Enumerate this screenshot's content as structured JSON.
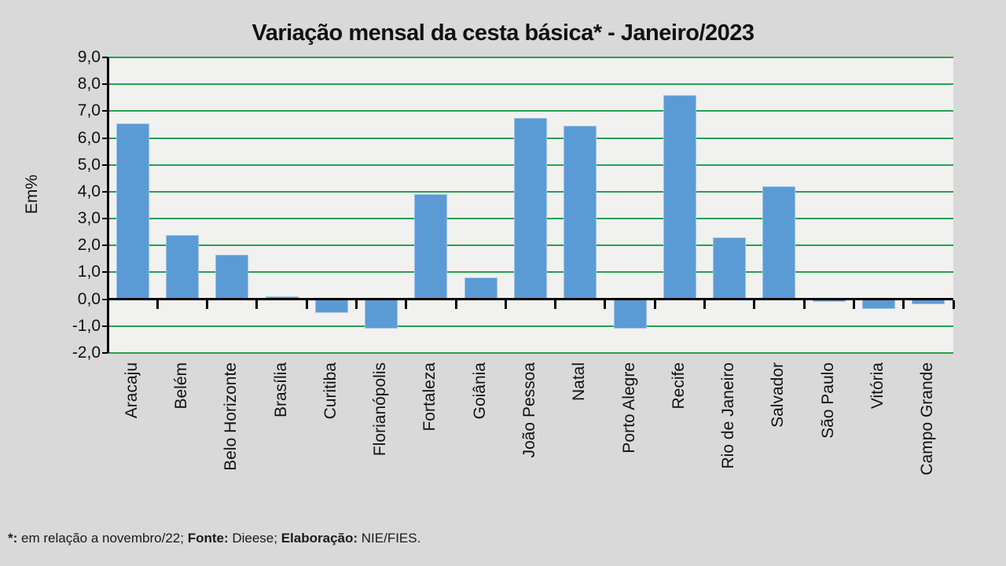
{
  "title": "Variação mensal da cesta básica* - Janeiro/2023",
  "footer": {
    "asterisk_label": "*:",
    "note": " em relação a novembro/22; ",
    "fonte_label": "Fonte:",
    "fonte_value": " Dieese; ",
    "elaboracao_label": "Elaboração:",
    "elaboracao_value": " NIE/FIES."
  },
  "colors": {
    "page_background": "#d9d9d9",
    "plot_background": "#f1f1ef",
    "gridline": "#28a050",
    "bar": "#5b9bd5",
    "axis": "#000000"
  },
  "chart_data": {
    "type": "bar",
    "title": "Variação mensal da cesta básica* - Janeiro/2023",
    "xlabel": "",
    "ylabel": "Em%",
    "ylim": [
      -2.0,
      9.0
    ],
    "grid": true,
    "legend": false,
    "categories": [
      "Aracaju",
      "Belém",
      "Belo Horizonte",
      "Brasília",
      "Curitiba",
      "Florianópolis",
      "Fortaleza",
      "Goiânia",
      "João Pessoa",
      "Natal",
      "Porto Alegre",
      "Recife",
      "Rio de Janeiro",
      "Salvador",
      "São Paulo",
      "Vitória",
      "Campo Grande"
    ],
    "values": [
      6.55,
      2.4,
      1.65,
      0.1,
      -0.5,
      -1.1,
      3.9,
      0.8,
      6.75,
      6.45,
      -1.1,
      7.6,
      2.3,
      4.2,
      -0.1,
      -0.35,
      -0.2
    ],
    "yticks": [
      {
        "v": 9,
        "label": "9,0"
      },
      {
        "v": 8,
        "label": "8,0"
      },
      {
        "v": 7,
        "label": "7,0"
      },
      {
        "v": 6,
        "label": "6,0"
      },
      {
        "v": 5,
        "label": "5,0"
      },
      {
        "v": 4,
        "label": "4,0"
      },
      {
        "v": 3,
        "label": "3,0"
      },
      {
        "v": 2,
        "label": "2,0"
      },
      {
        "v": 1,
        "label": "1,0"
      },
      {
        "v": 0,
        "label": "0,0"
      },
      {
        "v": -1,
        "label": "-1,0"
      },
      {
        "v": -2,
        "label": "-2,0"
      }
    ]
  }
}
